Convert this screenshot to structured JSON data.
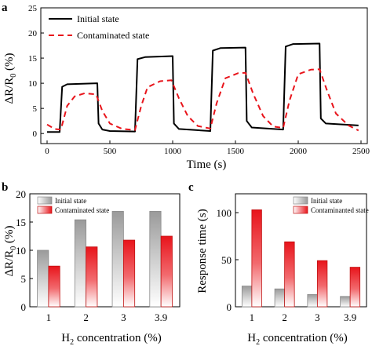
{
  "chart_data": [
    {
      "panel": "a",
      "type": "line",
      "xlabel": "Time (s)",
      "ylabel": "ΔR/R0 (%)",
      "xlim": [
        -50,
        2550
      ],
      "ylim": [
        -2,
        25
      ],
      "xticks": [
        0,
        500,
        1000,
        1500,
        2000,
        2500
      ],
      "yticks": [
        0,
        5,
        10,
        15,
        20,
        25
      ],
      "legend_position": "top-left",
      "series": [
        {
          "name": "Initial state",
          "color": "#000000",
          "style": "solid",
          "points": [
            [
              0,
              0.3
            ],
            [
              100,
              0.3
            ],
            [
              120,
              9.3
            ],
            [
              160,
              9.8
            ],
            [
              400,
              10.0
            ],
            [
              410,
              2.0
            ],
            [
              440,
              0.8
            ],
            [
              500,
              0.5
            ],
            [
              700,
              0.4
            ],
            [
              720,
              14.8
            ],
            [
              780,
              15.2
            ],
            [
              1000,
              15.4
            ],
            [
              1010,
              2.0
            ],
            [
              1050,
              0.9
            ],
            [
              1300,
              0.5
            ],
            [
              1320,
              16.5
            ],
            [
              1380,
              17.0
            ],
            [
              1580,
              17.1
            ],
            [
              1590,
              2.5
            ],
            [
              1630,
              1.2
            ],
            [
              1880,
              0.8
            ],
            [
              1900,
              17.3
            ],
            [
              1960,
              17.8
            ],
            [
              2170,
              17.9
            ],
            [
              2180,
              3.0
            ],
            [
              2220,
              2.0
            ],
            [
              2480,
              1.6
            ]
          ]
        },
        {
          "name": "Contaminated state",
          "color": "#e8141b",
          "style": "dashed",
          "points": [
            [
              0,
              1.8
            ],
            [
              60,
              0.9
            ],
            [
              110,
              0.8
            ],
            [
              160,
              5.5
            ],
            [
              220,
              7.4
            ],
            [
              300,
              8.0
            ],
            [
              390,
              7.8
            ],
            [
              440,
              4.5
            ],
            [
              500,
              2.0
            ],
            [
              600,
              0.9
            ],
            [
              700,
              0.7
            ],
            [
              750,
              5.5
            ],
            [
              800,
              9.2
            ],
            [
              900,
              10.4
            ],
            [
              990,
              10.6
            ],
            [
              1050,
              7.0
            ],
            [
              1120,
              3.5
            ],
            [
              1200,
              1.5
            ],
            [
              1300,
              1.0
            ],
            [
              1350,
              6.0
            ],
            [
              1420,
              11.0
            ],
            [
              1520,
              12.0
            ],
            [
              1580,
              12.1
            ],
            [
              1640,
              8.0
            ],
            [
              1720,
              3.5
            ],
            [
              1800,
              1.4
            ],
            [
              1880,
              1.1
            ],
            [
              1930,
              6.5
            ],
            [
              2000,
              11.8
            ],
            [
              2100,
              12.7
            ],
            [
              2170,
              12.8
            ],
            [
              2230,
              8.5
            ],
            [
              2300,
              4.0
            ],
            [
              2400,
              1.6
            ],
            [
              2480,
              0.6
            ]
          ]
        }
      ]
    },
    {
      "panel": "b",
      "type": "bar",
      "xlabel": "H2 concentration (%)",
      "ylabel": "ΔR/R0 (%)",
      "categories": [
        "1",
        "2",
        "3",
        "3.9"
      ],
      "ylim": [
        0,
        20
      ],
      "yticks": [
        0,
        5,
        10,
        15,
        20
      ],
      "legend_position": "top-left",
      "series": [
        {
          "name": "Initial state",
          "color": "#a8a8a8",
          "values": [
            10.0,
            15.4,
            16.9,
            16.9
          ]
        },
        {
          "name": "Contaminated state",
          "color": "#e8141b",
          "values": [
            7.2,
            10.6,
            11.8,
            12.5
          ]
        }
      ]
    },
    {
      "panel": "c",
      "type": "bar",
      "xlabel": "H2 concentration (%)",
      "ylabel": "Response time (s)",
      "categories": [
        "1",
        "2",
        "3",
        "3.9"
      ],
      "ylim": [
        0,
        120
      ],
      "yticks": [
        0,
        50,
        100
      ],
      "legend_position": "top-right",
      "series": [
        {
          "name": "Initial state",
          "color": "#a8a8a8",
          "values": [
            22,
            19,
            13,
            11
          ]
        },
        {
          "name": "Contaminanted state",
          "color": "#e8141b",
          "values": [
            103,
            69,
            49,
            42
          ]
        }
      ]
    }
  ],
  "panel_labels": {
    "a": "a",
    "b": "b",
    "c": "c"
  },
  "text": {
    "a_ylabel_main": "ΔR/R",
    "a_ylabel_sub": "0",
    "a_ylabel_tail": " (%)",
    "a_xlabel": "Time (s)",
    "b_ylabel_main": "ΔR/R",
    "b_ylabel_sub": "0",
    "b_ylabel_tail": " (%)",
    "h2_pre": "H",
    "h2_sub": "2",
    "h2_tail": " concentration (%)",
    "c_ylabel": "Response time (s)"
  }
}
